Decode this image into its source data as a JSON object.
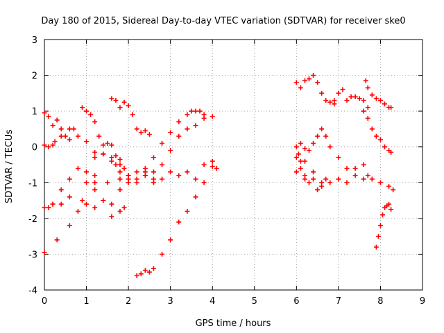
{
  "chart_data": {
    "type": "scatter",
    "title": "Day 180 of 2015, Sidereal Day-to-day VTEC variation (SDTVAR) for receiver ske0",
    "xlabel": "GPS time / hours",
    "ylabel": "SDTVAR / TECUs",
    "xlim": [
      0,
      9
    ],
    "ylim": [
      -4,
      3
    ],
    "x_ticks": [
      "0",
      "1",
      "2",
      "3",
      "4",
      "5",
      "6",
      "7",
      "8",
      "9"
    ],
    "y_ticks": [
      "-4",
      "-3",
      "-2",
      "-1",
      "0",
      "1",
      "2",
      "3"
    ],
    "grid": true,
    "marker": "+",
    "color": "#ff0000",
    "series": [
      {
        "x": [
          0.0,
          0.1,
          0.2,
          0.3,
          0.4,
          0.5,
          0.6,
          0.7
        ],
        "y": [
          0.95,
          0.85,
          0.6,
          0.75,
          0.5,
          0.3,
          0.2,
          0.5
        ]
      },
      {
        "x": [
          0.0,
          0.1,
          0.2,
          0.4,
          0.6,
          0.8,
          1.0,
          1.2
        ],
        "y": [
          -1.7,
          -1.7,
          -1.6,
          -1.2,
          -0.9,
          -0.6,
          -0.7,
          -0.8
        ]
      },
      {
        "x": [
          0.0,
          0.3,
          0.6,
          0.9,
          1.2,
          1.5,
          1.8,
          2.0
        ],
        "y": [
          -2.95,
          -2.6,
          -2.2,
          -1.5,
          -1.2,
          -1.0,
          -0.9,
          -0.8
        ]
      },
      {
        "x": [
          0.0,
          0.1,
          0.2,
          0.25
        ],
        "y": [
          0.05,
          0.0,
          0.05,
          0.15
        ]
      },
      {
        "x": [
          0.9,
          1.0,
          1.1,
          1.2,
          1.3,
          1.4,
          1.5,
          1.6,
          1.7,
          1.8
        ],
        "y": [
          1.1,
          1.0,
          0.9,
          0.7,
          0.3,
          0.05,
          0.1,
          0.05,
          -0.25,
          -0.35
        ]
      },
      {
        "x": [
          0.4,
          0.6,
          0.8,
          1.0,
          1.2,
          1.4,
          1.6,
          1.7,
          1.8,
          1.9
        ],
        "y": [
          0.3,
          0.5,
          0.3,
          0.15,
          -0.15,
          -0.2,
          -0.3,
          -0.5,
          -0.5,
          -0.6
        ]
      },
      {
        "x": [
          1.2,
          1.4,
          1.6,
          1.8,
          2.0,
          2.2,
          2.4,
          2.6
        ],
        "y": [
          -0.3,
          -0.2,
          -0.4,
          -0.7,
          -1.0,
          -0.7,
          -0.6,
          -0.7
        ]
      },
      {
        "x": [
          1.6,
          1.7,
          1.8,
          1.9,
          2.0,
          2.1,
          2.2,
          2.3,
          2.4,
          2.5
        ],
        "y": [
          1.35,
          1.3,
          1.1,
          1.25,
          1.15,
          0.9,
          0.5,
          0.4,
          0.45,
          0.35
        ]
      },
      {
        "x": [
          0.2,
          0.4,
          0.6,
          0.8,
          1.0,
          1.2,
          1.4,
          1.6,
          1.8,
          1.9
        ],
        "y": [
          -1.6,
          -1.6,
          -1.4,
          -1.8,
          -1.6,
          -1.7,
          -1.5,
          -1.95,
          -1.8,
          -1.7
        ]
      },
      {
        "x": [
          1.0,
          1.2,
          1.4,
          1.6,
          1.8,
          2.0
        ],
        "y": [
          -1.0,
          -1.0,
          -1.5,
          -1.6,
          -1.2,
          -0.8
        ]
      },
      {
        "x": [
          2.0,
          2.2,
          2.4,
          2.6,
          2.8,
          3.0,
          3.2,
          3.4,
          3.6,
          3.8,
          4.0,
          4.1
        ],
        "y": [
          -0.9,
          -1.0,
          -0.8,
          -1.0,
          -0.9,
          -0.7,
          -0.8,
          -0.7,
          -0.9,
          -0.5,
          -0.55,
          -0.6
        ]
      },
      {
        "x": [
          2.2,
          2.4,
          2.6,
          2.8,
          3.0,
          3.2,
          3.4,
          3.6,
          3.8,
          4.0
        ],
        "y": [
          -0.9,
          -0.8,
          -0.9,
          -0.5,
          -0.1,
          0.3,
          0.5,
          0.6,
          0.8,
          0.85
        ]
      },
      {
        "x": [
          2.4,
          2.6,
          2.8,
          3.0,
          3.2,
          3.4,
          3.5,
          3.6,
          3.7,
          3.8
        ],
        "y": [
          -0.7,
          -0.3,
          0.1,
          0.4,
          0.7,
          0.9,
          1.0,
          1.0,
          1.0,
          0.9
        ]
      },
      {
        "x": [
          2.2,
          2.3,
          2.4,
          2.5,
          2.6,
          2.8,
          3.0,
          3.2,
          3.4,
          3.6,
          3.8,
          4.0
        ],
        "y": [
          -3.6,
          -3.55,
          -3.45,
          -3.5,
          -3.4,
          -3.0,
          -2.6,
          -2.1,
          -1.8,
          -1.4,
          -1.0,
          -0.4
        ]
      },
      {
        "x": [
          6.0,
          6.1,
          6.2,
          6.3,
          6.4,
          6.5,
          6.6,
          6.7,
          6.8,
          6.9
        ],
        "y": [
          1.8,
          1.65,
          1.85,
          1.9,
          2.0,
          1.8,
          1.5,
          1.3,
          1.25,
          1.2
        ]
      },
      {
        "x": [
          6.9,
          7.0,
          7.1,
          7.2,
          7.3,
          7.4,
          7.5,
          7.6,
          7.7
        ],
        "y": [
          1.3,
          1.5,
          1.6,
          1.3,
          1.4,
          1.4,
          1.35,
          1.3,
          1.1
        ]
      },
      {
        "x": [
          7.65,
          7.7,
          7.8,
          7.9,
          8.0,
          8.1,
          8.2,
          8.25
        ],
        "y": [
          1.85,
          1.65,
          1.45,
          1.35,
          1.3,
          1.2,
          1.1,
          1.1
        ]
      },
      {
        "x": [
          7.6,
          7.7,
          7.8,
          7.9,
          8.0,
          8.1,
          8.2,
          8.25
        ],
        "y": [
          1.0,
          0.8,
          0.5,
          0.3,
          0.2,
          0.0,
          -0.1,
          -0.15
        ]
      },
      {
        "x": [
          6.0,
          6.1,
          6.2,
          6.3,
          6.4,
          6.5,
          6.6,
          6.7,
          6.8,
          7.0,
          7.2,
          7.4,
          7.6,
          7.7
        ],
        "y": [
          -0.3,
          -0.6,
          -0.4,
          -0.1,
          0.1,
          0.3,
          0.5,
          0.3,
          0.0,
          -0.3,
          -0.6,
          -0.8,
          -0.9,
          -0.8
        ]
      },
      {
        "x": [
          6.0,
          6.2,
          6.4,
          6.6,
          6.8,
          7.0,
          7.2,
          7.4,
          7.6,
          7.8,
          8.0,
          8.2,
          8.3
        ],
        "y": [
          -0.7,
          -0.9,
          -0.7,
          -1.0,
          -1.0,
          -0.9,
          -1.0,
          -0.6,
          -0.5,
          -0.9,
          -1.0,
          -1.1,
          -1.2
        ]
      },
      {
        "x": [
          6.05,
          6.1,
          6.2,
          6.3,
          6.4,
          6.5,
          6.6,
          6.7
        ],
        "y": [
          -0.2,
          -0.4,
          -0.8,
          -1.0,
          -0.9,
          -1.2,
          -1.1,
          -0.9
        ]
      },
      {
        "x": [
          6.0,
          6.1,
          6.2
        ],
        "y": [
          0.0,
          0.1,
          -0.05
        ]
      },
      {
        "x": [
          7.9,
          7.95,
          8.0,
          8.05,
          8.1,
          8.15,
          8.2,
          8.25
        ],
        "y": [
          -2.8,
          -2.5,
          -2.2,
          -1.9,
          -1.7,
          -1.65,
          -1.6,
          -1.75
        ]
      }
    ]
  }
}
